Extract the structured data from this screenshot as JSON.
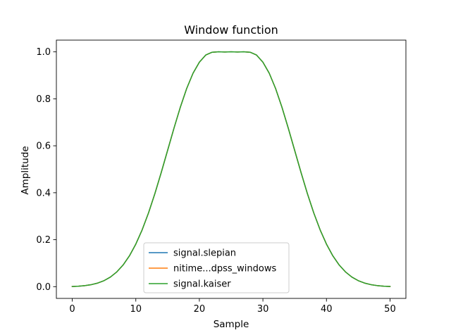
{
  "chart_data": {
    "type": "line",
    "title": "Window function",
    "xlabel": "Sample",
    "ylabel": "Amplitude",
    "xlim": [
      -2.5,
      52.5
    ],
    "ylim": [
      -0.05,
      1.05
    ],
    "xticks": [
      0,
      10,
      20,
      30,
      40,
      50
    ],
    "yticks": [
      0.0,
      0.2,
      0.4,
      0.6,
      0.8,
      1.0
    ],
    "xtick_labels": [
      "0",
      "10",
      "20",
      "30",
      "40",
      "50"
    ],
    "ytick_labels": [
      "0.0",
      "0.2",
      "0.4",
      "0.6",
      "0.8",
      "1.0"
    ],
    "grid": false,
    "legend_position": "lower-center",
    "x": [
      0,
      1,
      2,
      3,
      4,
      5,
      6,
      7,
      8,
      9,
      10,
      11,
      12,
      13,
      14,
      15,
      16,
      17,
      18,
      19,
      20,
      21,
      22,
      23,
      24,
      25,
      26,
      27,
      28,
      29,
      30,
      31,
      32,
      33,
      34,
      35,
      36,
      37,
      38,
      39,
      40,
      41,
      42,
      43,
      44,
      45,
      46,
      47,
      48,
      49,
      50
    ],
    "series": [
      {
        "name": "signal.slepian",
        "color": "#1f77b4",
        "values": [
          0.0006,
          0.0021,
          0.0045,
          0.0086,
          0.0153,
          0.0256,
          0.0409,
          0.0626,
          0.0923,
          0.1314,
          0.1812,
          0.2422,
          0.3143,
          0.3963,
          0.4861,
          0.5802,
          0.6743,
          0.7638,
          0.8435,
          0.9088,
          0.9561,
          0.9864,
          0.9984,
          1.0,
          0.9995,
          1.0,
          0.9995,
          1.0,
          0.9984,
          0.9864,
          0.9561,
          0.9088,
          0.8435,
          0.7638,
          0.6743,
          0.5802,
          0.4861,
          0.3963,
          0.3143,
          0.2422,
          0.1812,
          0.1314,
          0.0923,
          0.0626,
          0.0409,
          0.0256,
          0.0153,
          0.0086,
          0.0045,
          0.0021,
          0.0006
        ]
      },
      {
        "name": "nitime...dpss_windows",
        "color": "#ff7f0e",
        "values": [
          0.0006,
          0.0021,
          0.0045,
          0.0086,
          0.0153,
          0.0256,
          0.0409,
          0.0626,
          0.0923,
          0.1314,
          0.1812,
          0.2422,
          0.3143,
          0.3963,
          0.4861,
          0.5802,
          0.6743,
          0.7638,
          0.8435,
          0.9088,
          0.9561,
          0.9864,
          0.9984,
          1.0,
          0.9995,
          1.0,
          0.9995,
          1.0,
          0.9984,
          0.9864,
          0.9561,
          0.9088,
          0.8435,
          0.7638,
          0.6743,
          0.5802,
          0.4861,
          0.3963,
          0.3143,
          0.2422,
          0.1812,
          0.1314,
          0.0923,
          0.0626,
          0.0409,
          0.0256,
          0.0153,
          0.0086,
          0.0045,
          0.0021,
          0.0006
        ]
      },
      {
        "name": "signal.kaiser",
        "color": "#2ca02c",
        "values": [
          0.0006,
          0.0021,
          0.0045,
          0.0086,
          0.0153,
          0.0256,
          0.0409,
          0.0626,
          0.0923,
          0.1314,
          0.1812,
          0.2422,
          0.3143,
          0.3963,
          0.4861,
          0.5802,
          0.6743,
          0.7638,
          0.8435,
          0.9088,
          0.9561,
          0.9864,
          0.9984,
          1.0,
          0.9995,
          1.0,
          0.9995,
          1.0,
          0.9984,
          0.9864,
          0.9561,
          0.9088,
          0.8435,
          0.7638,
          0.6743,
          0.5802,
          0.4861,
          0.3963,
          0.3143,
          0.2422,
          0.1812,
          0.1314,
          0.0923,
          0.0626,
          0.0409,
          0.0256,
          0.0153,
          0.0086,
          0.0045,
          0.0021,
          0.0006
        ]
      }
    ]
  }
}
